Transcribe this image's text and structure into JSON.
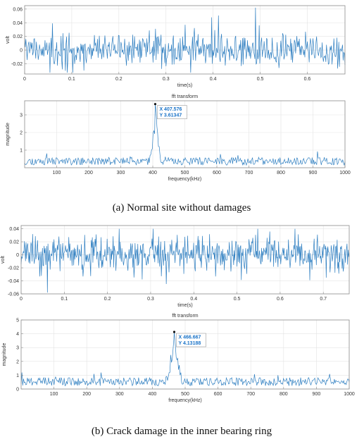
{
  "captions": {
    "a": "(a) Normal site without damages",
    "b": "(b) Crack damage in the inner bearing ring"
  },
  "colors": {
    "line": "#2f7fc1",
    "grid": "#e3e3e3",
    "axis": "#8c8c8c",
    "tip": "#1a73c8"
  },
  "chart_data": [
    {
      "type": "line",
      "id": "a-time",
      "title": "",
      "xlabel": "time(s)",
      "ylabel": "volt",
      "xlim": [
        0,
        0.68
      ],
      "ylim": [
        -0.035,
        0.065
      ],
      "xticks": [
        0,
        0.1,
        0.2,
        0.3,
        0.4,
        0.5,
        0.6
      ],
      "xticklabels": [
        "0",
        "0.1",
        "0.2",
        "0.3",
        "0.4",
        "0.5",
        "0.6"
      ],
      "yticks": [
        -0.02,
        0,
        0.02,
        0.04,
        0.06
      ],
      "yticklabels": [
        "-0.02",
        "0",
        "0.02",
        "0.04",
        "0.06"
      ],
      "grid": true,
      "signal": {
        "kind": "noise",
        "n": 520,
        "sd": 0.012,
        "max": 0.062,
        "min": -0.033,
        "seed": 7
      }
    },
    {
      "type": "line",
      "id": "a-fft",
      "title": "fft transform",
      "xlabel": "frequency(kHz)",
      "ylabel": "magnitude",
      "xlim": [
        0,
        1000
      ],
      "ylim": [
        0,
        3.8
      ],
      "xticks": [
        100,
        200,
        300,
        400,
        500,
        600,
        700,
        800,
        900,
        1000
      ],
      "xticklabels": [
        "100",
        "200",
        "300",
        "400",
        "500",
        "600",
        "700",
        "800",
        "900",
        "1000"
      ],
      "yticks": [
        1,
        2,
        3
      ],
      "yticklabels": [
        "1",
        "2",
        "3"
      ],
      "grid": true,
      "signal": {
        "kind": "spectrum",
        "n": 420,
        "base": 0.35,
        "spread": 0.22,
        "peak_x": 407.576,
        "peak_y": 3.61347,
        "width": 9,
        "seed": 11
      },
      "datatip": {
        "x": 407.576,
        "y": 3.61347,
        "x_text": "X 407.576",
        "y_text": "Y 3.61347"
      }
    },
    {
      "type": "line",
      "id": "b-time",
      "title": "",
      "xlabel": "time(s)",
      "ylabel": "volt",
      "xlim": [
        0,
        0.76
      ],
      "ylim": [
        -0.06,
        0.045
      ],
      "xticks": [
        0,
        0.1,
        0.2,
        0.3,
        0.4,
        0.5,
        0.6,
        0.7
      ],
      "xticklabels": [
        "0",
        "0.1",
        "0.2",
        "0.3",
        "0.4",
        "0.5",
        "0.6",
        "0.7"
      ],
      "yticks": [
        -0.06,
        -0.04,
        -0.02,
        0,
        0.02,
        0.04
      ],
      "yticklabels": [
        "-0.06",
        "-0.04",
        "-0.02",
        "0",
        "0.02",
        "0.04"
      ],
      "grid": true,
      "signal": {
        "kind": "noise",
        "n": 600,
        "sd": 0.013,
        "max": 0.04,
        "min": -0.058,
        "seed": 23
      }
    },
    {
      "type": "line",
      "id": "b-fft",
      "title": "fft transform",
      "xlabel": "frequency(kHz)",
      "ylabel": "magnitude",
      "xlim": [
        0,
        1000
      ],
      "ylim": [
        0,
        5
      ],
      "xticks": [
        100,
        200,
        300,
        400,
        500,
        600,
        700,
        800,
        900,
        1000
      ],
      "xticklabels": [
        "100",
        "200",
        "300",
        "400",
        "500",
        "600",
        "700",
        "800",
        "900",
        "1000"
      ],
      "yticks": [
        0,
        1,
        2,
        3,
        4,
        5
      ],
      "yticklabels": [
        "0",
        "1",
        "2",
        "3",
        "4",
        "5"
      ],
      "grid": true,
      "signal": {
        "kind": "spectrum",
        "n": 420,
        "base": 0.5,
        "spread": 0.3,
        "peak_x": 466.667,
        "peak_y": 4.13188,
        "width": 14,
        "seed": 31
      },
      "datatip": {
        "x": 466.667,
        "y": 4.13188,
        "x_text": "X 466.667",
        "y_text": "Y 4.13188"
      }
    }
  ]
}
